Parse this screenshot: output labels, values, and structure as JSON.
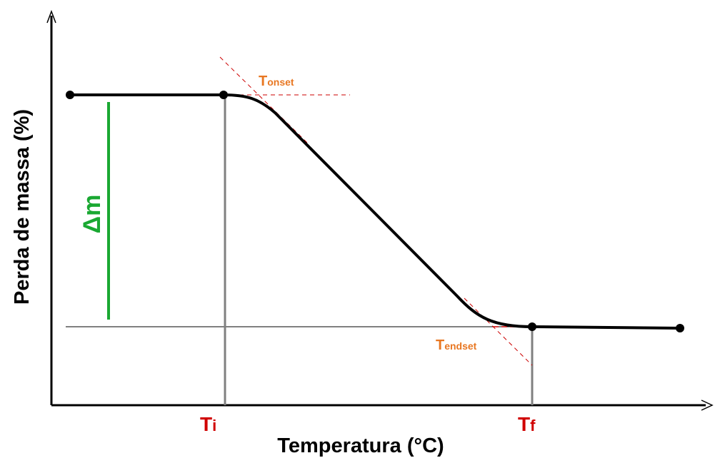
{
  "axes": {
    "y_label": "Perda de massa (%)",
    "x_label": "Temperatura (°C)"
  },
  "markers": {
    "t_initial": {
      "main": "T",
      "sub": "i"
    },
    "t_final": {
      "main": "T",
      "sub": "f"
    },
    "t_onset": {
      "main": "T",
      "sub": "onset"
    },
    "t_endset": {
      "main": "T",
      "sub": "endset"
    }
  },
  "delta_mass": "Δm"
}
